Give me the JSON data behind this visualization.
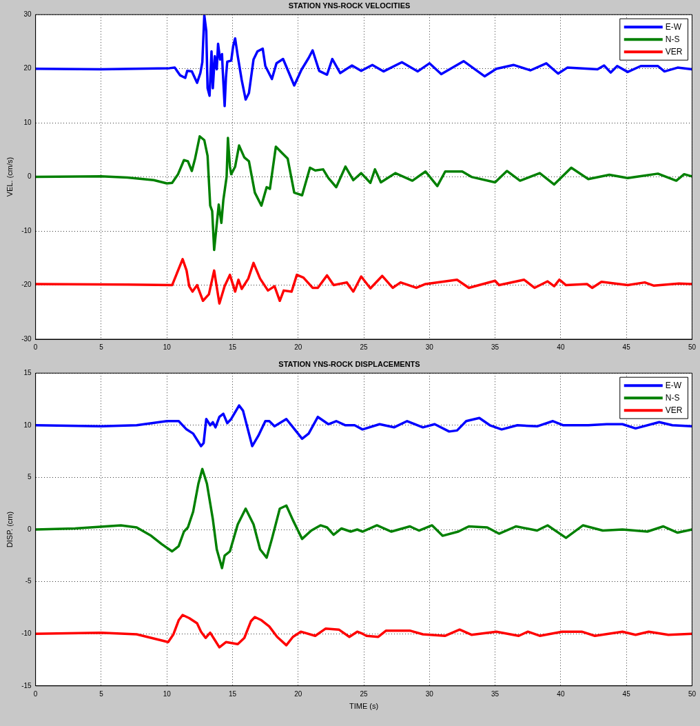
{
  "chart_data": [
    {
      "type": "line",
      "title": "STATION YNS-ROCK VELOCITIES",
      "ylabel": "VEL. (cm/s)",
      "xlim": [
        0,
        50
      ],
      "xticks": [
        0,
        5,
        10,
        15,
        20,
        25,
        30,
        35,
        40,
        45,
        50
      ],
      "ylim": [
        -30,
        30
      ],
      "yticks": [
        -30,
        -20,
        -10,
        0,
        10,
        20,
        30
      ],
      "grid": true,
      "legend": "top right",
      "series": [
        {
          "name": "E-W",
          "color": "#0000ff",
          "x": [
            0,
            5,
            10.2,
            10.6,
            11.0,
            11.4,
            11.55,
            11.9,
            12.3,
            12.55,
            12.7,
            12.85,
            13.0,
            13.1,
            13.25,
            13.4,
            13.5,
            13.65,
            13.8,
            13.9,
            14.05,
            14.2,
            14.25,
            14.4,
            14.5,
            14.6,
            14.9,
            15.05,
            15.2,
            15.4,
            15.7,
            16.0,
            16.25,
            16.6,
            16.9,
            17.3,
            17.5,
            18.0,
            18.35,
            18.85,
            19.2,
            19.7,
            20.25,
            20.8,
            21.1,
            21.6,
            22.2,
            22.6,
            23.2,
            24.1,
            24.8,
            25.65,
            26.5,
            27.9,
            29.1,
            30.0,
            30.9,
            32.6,
            34.2,
            35.1,
            36.4,
            37.7,
            38.9,
            39.8,
            40.5,
            42.8,
            43.3,
            43.8,
            44.3,
            45.1,
            46.1,
            47.4,
            47.9,
            48.9,
            50
          ],
          "values": [
            20,
            19.9,
            20.1,
            20.2,
            18.8,
            18.3,
            19.6,
            19.5,
            17.4,
            19.2,
            21.2,
            29.9,
            27,
            16.4,
            15,
            23.2,
            16.4,
            22.3,
            19.9,
            24.6,
            21.7,
            22.7,
            19.9,
            13.1,
            18.4,
            21.3,
            21.5,
            24.2,
            25.6,
            22.3,
            17.9,
            14.3,
            15.5,
            21.7,
            23.2,
            23.7,
            20.5,
            18.1,
            21,
            21.8,
            19.8,
            16.9,
            19.8,
            22,
            23.4,
            19.6,
            18.9,
            21.8,
            19.2,
            20.6,
            19.6,
            20.7,
            19.5,
            21.2,
            19.5,
            21,
            19,
            21.4,
            18.6,
            20,
            20.7,
            19.7,
            21,
            19.1,
            20.2,
            19.9,
            20.6,
            19.3,
            20.5,
            19.4,
            20.5,
            20.5,
            19.5,
            20.2,
            19.9
          ]
        },
        {
          "name": "N-S",
          "color": "#008000",
          "x": [
            0,
            5,
            7,
            9,
            10,
            10.4,
            10.85,
            11.3,
            11.6,
            11.9,
            12.15,
            12.5,
            12.85,
            13.1,
            13.3,
            13.45,
            13.6,
            13.8,
            13.95,
            14.15,
            14.3,
            14.55,
            14.65,
            14.8,
            14.9,
            15.2,
            15.5,
            15.9,
            16.25,
            16.7,
            17.2,
            17.6,
            17.85,
            18.3,
            18.7,
            19.2,
            19.7,
            20.3,
            20.9,
            21.3,
            21.9,
            22.3,
            22.9,
            23.6,
            24.2,
            24.8,
            25.5,
            25.85,
            26.3,
            27.4,
            28.7,
            29.7,
            30.6,
            31.2,
            32.5,
            33.2,
            35.0,
            35.9,
            36.9,
            38.4,
            39.5,
            40.8,
            42.1,
            43.7,
            45.1,
            47.4,
            48.8,
            49.4,
            50
          ],
          "values": [
            0,
            0.1,
            -0.1,
            -0.6,
            -1.2,
            -1.1,
            0.5,
            3.1,
            2.9,
            1.1,
            3.4,
            7.5,
            6.8,
            3.9,
            -5.3,
            -6.3,
            -13.5,
            -8.7,
            -5.1,
            -8.5,
            -4.3,
            0,
            7.2,
            1.9,
            0.5,
            1.9,
            5.8,
            3.6,
            2.9,
            -2.9,
            -5.3,
            -1.9,
            -2.2,
            5.6,
            4.6,
            3.4,
            -2.9,
            -3.4,
            1.7,
            1.2,
            1.4,
            -0.2,
            -1.9,
            1.9,
            -0.6,
            0.7,
            -1.1,
            1.4,
            -1,
            0.7,
            -0.7,
            1,
            -1.7,
            1,
            1,
            0,
            -1,
            1.1,
            -0.7,
            0.7,
            -1.4,
            1.7,
            -0.4,
            0.4,
            -0.2,
            0.6,
            -0.7,
            0.5,
            0.1
          ]
        },
        {
          "name": "VER",
          "color": "#ff0000",
          "x": [
            0,
            7,
            10.4,
            11.2,
            11.5,
            11.7,
            11.95,
            12.3,
            12.75,
            13.2,
            13.6,
            14.0,
            14.4,
            14.8,
            15.2,
            15.45,
            15.7,
            16.2,
            16.6,
            17.1,
            17.7,
            18.2,
            18.6,
            18.9,
            19.5,
            19.9,
            20.4,
            21.1,
            21.5,
            22.2,
            22.7,
            23.7,
            24.2,
            24.8,
            25.5,
            26.4,
            27.2,
            27.8,
            29.0,
            29.7,
            32.1,
            33.0,
            35.0,
            35.3,
            37.2,
            38.0,
            39.0,
            39.5,
            39.9,
            40.4,
            42.0,
            42.4,
            43.1,
            45.1,
            46.4,
            47.1,
            49.0,
            50
          ],
          "values": [
            -19.8,
            -19.9,
            -20,
            -15.2,
            -17.3,
            -20.2,
            -21.2,
            -20,
            -22.9,
            -21.7,
            -17.3,
            -23.4,
            -20.2,
            -18.1,
            -21.2,
            -19,
            -20.7,
            -18.8,
            -15.9,
            -18.8,
            -21,
            -20.2,
            -22.9,
            -21,
            -21.2,
            -18.1,
            -18.6,
            -20.5,
            -20.5,
            -18.2,
            -20,
            -19.5,
            -21.2,
            -18.4,
            -20.6,
            -18.3,
            -20.5,
            -19.5,
            -20.5,
            -19.8,
            -19,
            -20.5,
            -19.2,
            -20,
            -19,
            -20.5,
            -19.3,
            -20.2,
            -19,
            -20,
            -19.8,
            -20.5,
            -19.4,
            -20,
            -19.5,
            -20.1,
            -19.7,
            -19.8
          ]
        }
      ]
    },
    {
      "type": "line",
      "title": "STATION YNS-ROCK DISPLACEMENTS",
      "xlabel": "TIME (s)",
      "ylabel": "DISP. (cm)",
      "xlim": [
        0,
        50
      ],
      "xticks": [
        0,
        5,
        10,
        15,
        20,
        25,
        30,
        35,
        40,
        45,
        50
      ],
      "ylim": [
        -15,
        15
      ],
      "yticks": [
        -15,
        -10,
        -5,
        0,
        5,
        10,
        15
      ],
      "grid": true,
      "legend": "top right",
      "series": [
        {
          "name": "E-W",
          "color": "#0000ff",
          "x": [
            0,
            5,
            7.7,
            10.0,
            10.9,
            11.5,
            12.0,
            12.6,
            12.8,
            13.0,
            13.3,
            13.5,
            13.7,
            14.0,
            14.3,
            14.6,
            14.9,
            15.5,
            15.8,
            16.5,
            16.97,
            17.5,
            17.8,
            18.2,
            19.1,
            19.8,
            20.3,
            20.8,
            21.5,
            22.3,
            22.9,
            23.6,
            24.3,
            24.9,
            26.2,
            27.3,
            28.3,
            29.5,
            30.4,
            31.5,
            32.1,
            32.8,
            33.8,
            34.6,
            35.5,
            36.7,
            38.2,
            39.4,
            40.2,
            42.1,
            43.5,
            44.7,
            45.7,
            47.5,
            48.5,
            50
          ],
          "values": [
            10,
            9.9,
            10,
            10.4,
            10.4,
            9.6,
            9.2,
            8,
            8.3,
            10.6,
            10,
            10.3,
            9.8,
            10.8,
            11.1,
            10.2,
            10.6,
            11.9,
            11.4,
            8,
            9,
            10.4,
            10.4,
            9.9,
            10.6,
            9.5,
            8.7,
            9.2,
            10.8,
            10.1,
            10.4,
            10,
            10,
            9.6,
            10.1,
            9.8,
            10.4,
            9.8,
            10.1,
            9.4,
            9.5,
            10.4,
            10.7,
            10,
            9.6,
            10,
            9.9,
            10.4,
            10,
            10,
            10.1,
            10.1,
            9.7,
            10.3,
            10,
            9.9
          ]
        },
        {
          "name": "N-S",
          "color": "#008000",
          "x": [
            0,
            3,
            6.5,
            7.7,
            8.8,
            9.6,
            10.4,
            10.9,
            11.3,
            11.6,
            12.0,
            12.4,
            12.7,
            13.05,
            13.5,
            13.8,
            14.2,
            14.4,
            14.8,
            15.4,
            16.0,
            16.6,
            17.1,
            17.6,
            18.0,
            18.6,
            19.1,
            19.6,
            20.3,
            21.0,
            21.7,
            22.2,
            22.7,
            23.3,
            24.0,
            24.5,
            24.9,
            26.0,
            27.1,
            28.5,
            29.2,
            30.2,
            31.0,
            32.2,
            33.0,
            34.4,
            35.3,
            36.6,
            38.2,
            39.0,
            40.4,
            41.7,
            43.2,
            44.7,
            46.6,
            47.8,
            48.9,
            50
          ],
          "values": [
            0,
            0.1,
            0.4,
            0.2,
            -0.6,
            -1.4,
            -2.1,
            -1.6,
            -0.2,
            0.2,
            1.7,
            4.4,
            5.8,
            4.4,
            1,
            -1.9,
            -3.7,
            -2.5,
            -2.1,
            0.5,
            2,
            0.5,
            -1.9,
            -2.7,
            -0.9,
            2,
            2.3,
            0.9,
            -0.9,
            -0.1,
            0.4,
            0.2,
            -0.5,
            0.1,
            -0.2,
            0,
            -0.2,
            0.4,
            -0.2,
            0.3,
            -0.1,
            0.4,
            -0.6,
            -0.2,
            0.3,
            0.2,
            -0.4,
            0.3,
            -0.1,
            0.4,
            -0.8,
            0.4,
            -0.1,
            0,
            -0.2,
            0.3,
            -0.3,
            0
          ]
        },
        {
          "name": "VER",
          "color": "#ff0000",
          "x": [
            0,
            5,
            7.7,
            10.1,
            10.5,
            10.9,
            11.2,
            11.7,
            12.3,
            12.6,
            12.95,
            13.3,
            13.6,
            14.0,
            14.5,
            15.4,
            15.9,
            16.4,
            16.7,
            17.2,
            17.8,
            18.4,
            19.1,
            19.6,
            20.2,
            21.3,
            22.1,
            23.1,
            23.9,
            24.5,
            24.9,
            25.2,
            26.1,
            26.7,
            28.5,
            29.5,
            31.2,
            32.3,
            33.2,
            35.1,
            36.8,
            37.5,
            38.4,
            40.1,
            41.6,
            42.6,
            44.7,
            45.7,
            46.7,
            48.2,
            50
          ],
          "values": [
            -10,
            -9.9,
            -10.05,
            -10.8,
            -10.05,
            -8.7,
            -8.2,
            -8.5,
            -9,
            -9.8,
            -10.4,
            -9.9,
            -10.5,
            -11.3,
            -10.8,
            -11,
            -10.4,
            -8.8,
            -8.4,
            -8.7,
            -9.3,
            -10.3,
            -11.1,
            -10.3,
            -9.8,
            -10.2,
            -9.5,
            -9.6,
            -10.3,
            -9.8,
            -10,
            -10.2,
            -10.3,
            -9.7,
            -9.7,
            -10.05,
            -10.2,
            -9.6,
            -10.1,
            -9.8,
            -10.2,
            -9.8,
            -10.2,
            -9.8,
            -9.8,
            -10.2,
            -9.8,
            -10.1,
            -9.8,
            -10.1,
            -10
          ]
        }
      ]
    }
  ]
}
